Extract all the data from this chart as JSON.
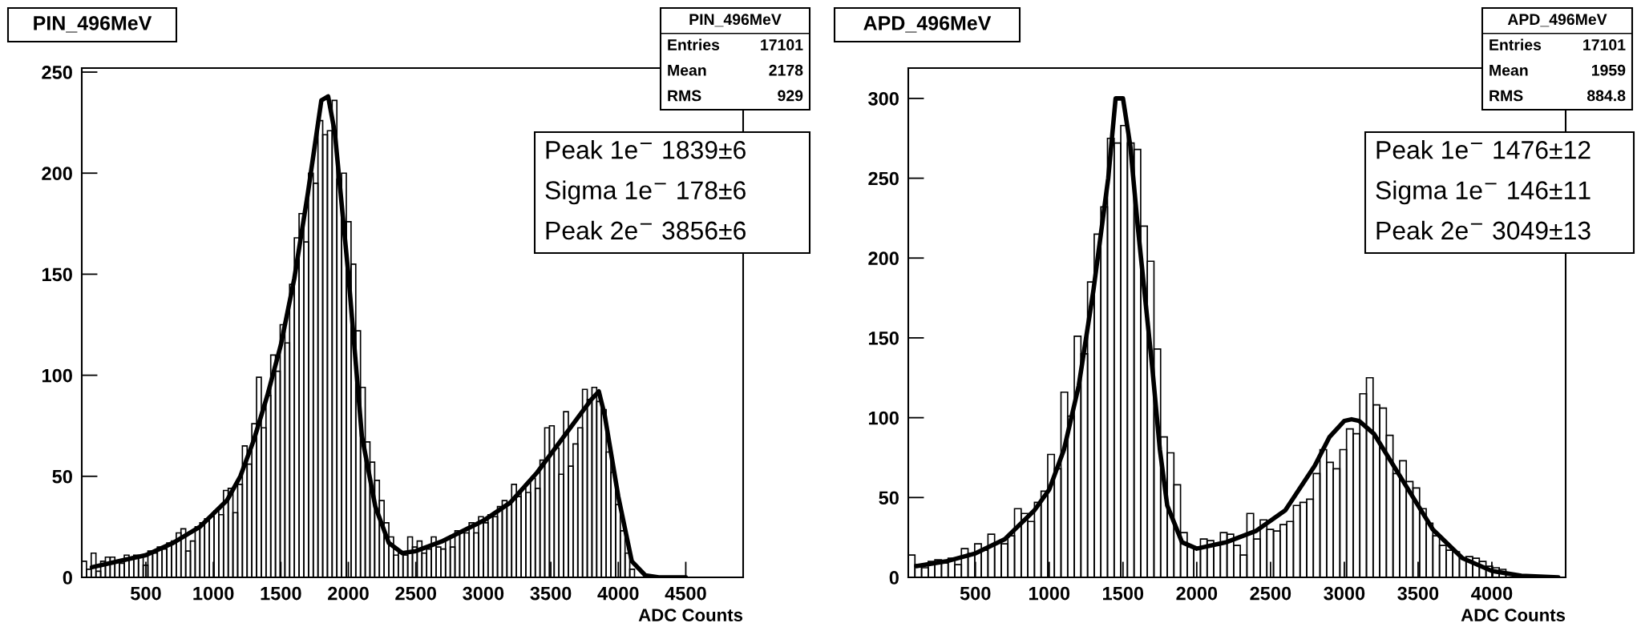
{
  "chart_data": [
    {
      "type": "histogram",
      "title": "PIN_496MeV",
      "xlabel": "ADC Counts",
      "color": "#000000",
      "xlim": [
        25,
        4925
      ],
      "xticks": [
        500,
        1000,
        1500,
        2000,
        2500,
        3000,
        3500,
        4000,
        4500
      ],
      "ylim": [
        0,
        252
      ],
      "yticks": [
        0,
        50,
        100,
        150,
        200,
        250
      ],
      "grid": false,
      "legend": false,
      "bins": [
        25,
        60,
        95,
        130,
        165,
        200,
        235,
        270,
        305,
        340,
        375,
        410,
        445,
        480,
        515,
        550,
        585,
        620,
        655,
        690,
        725,
        760,
        795,
        830,
        865,
        900,
        935,
        970,
        1005,
        1040,
        1075,
        1110,
        1145,
        1180,
        1215,
        1250,
        1285,
        1320,
        1355,
        1390,
        1425,
        1460,
        1495,
        1530,
        1565,
        1600,
        1635,
        1670,
        1705,
        1740,
        1775,
        1810,
        1845,
        1880,
        1915,
        1950,
        1985,
        2020,
        2055,
        2090,
        2125,
        2160,
        2195,
        2230,
        2265,
        2300,
        2335,
        2370,
        2405,
        2440,
        2475,
        2510,
        2545,
        2580,
        2615,
        2650,
        2685,
        2720,
        2755,
        2790,
        2825,
        2860,
        2895,
        2930,
        2965,
        3000,
        3035,
        3070,
        3105,
        3140,
        3175,
        3210,
        3245,
        3280,
        3315,
        3350,
        3385,
        3420,
        3455,
        3490,
        3525,
        3560,
        3595,
        3630,
        3665,
        3700,
        3735,
        3770,
        3805,
        3840,
        3875,
        3910,
        3945,
        3980,
        4015,
        4050,
        4085,
        4120,
        4155,
        4190,
        4225
      ],
      "values": [
        8,
        4,
        12,
        3,
        8,
        10,
        10,
        8,
        7,
        11,
        9,
        11,
        10,
        6,
        13,
        12,
        15,
        14,
        17,
        18,
        22,
        24,
        13,
        18,
        25,
        27,
        29,
        30,
        33,
        31,
        43,
        44,
        32,
        46,
        65,
        56,
        76,
        99,
        74,
        90,
        110,
        102,
        125,
        116,
        145,
        168,
        180,
        166,
        200,
        195,
        226,
        219,
        221,
        236,
        197,
        200,
        176,
        155,
        122,
        94,
        67,
        57,
        48,
        38,
        27,
        20,
        11,
        12,
        11,
        20,
        15,
        18,
        12,
        14,
        20,
        15,
        14,
        19,
        15,
        23,
        22,
        22,
        27,
        22,
        30,
        27,
        31,
        30,
        35,
        38,
        36,
        46,
        40,
        44,
        42,
        49,
        44,
        58,
        74,
        75,
        64,
        51,
        82,
        55,
        66,
        74,
        93,
        88,
        94,
        87,
        83,
        62,
        52,
        36,
        23,
        12,
        4,
        null,
        0,
        0
      ],
      "series": [
        {
          "type": "line",
          "color": "#000000",
          "x": [
            100,
            300,
            500,
            700,
            900,
            1100,
            1200,
            1300,
            1400,
            1500,
            1600,
            1700,
            1800,
            1850,
            1900,
            2000,
            2050,
            2100,
            2200,
            2300,
            2400,
            2500,
            2700,
            3000,
            3200,
            3400,
            3600,
            3800,
            3856,
            3900,
            4000,
            4100,
            4200,
            4300,
            4500
          ],
          "values": [
            5,
            8,
            11,
            17,
            25,
            38,
            50,
            68,
            90,
            115,
            148,
            190,
            236,
            238,
            220,
            150,
            110,
            70,
            35,
            17,
            12,
            13,
            18,
            28,
            37,
            52,
            70,
            88,
            92,
            80,
            40,
            8,
            1,
            0,
            0
          ]
        }
      ],
      "annotations": [
        "PIN_496MeV",
        "Entries 17101",
        "Mean 2178",
        "RMS 929",
        "Peak 1e$^{−}$ 1839±6",
        "Sigma 1e$^{−}$ 178±6",
        "Peak 2e$^{−}$ 3856±6"
      ]
    },
    {
      "type": "histogram",
      "title": "APD_496MeV",
      "xlabel": "ADC Counts",
      "color": "#000000",
      "xlim": [
        45,
        4500
      ],
      "xticks": [
        500,
        1000,
        1500,
        2000,
        2500,
        3000,
        3500,
        4000
      ],
      "ylim": [
        0,
        319
      ],
      "yticks": [
        0,
        50,
        100,
        150,
        200,
        250,
        300
      ],
      "grid": false,
      "legend": false,
      "bins": [
        45,
        90,
        135,
        180,
        225,
        270,
        315,
        360,
        405,
        450,
        495,
        540,
        585,
        630,
        675,
        720,
        765,
        810,
        855,
        900,
        945,
        990,
        1035,
        1080,
        1125,
        1170,
        1215,
        1260,
        1305,
        1350,
        1395,
        1440,
        1485,
        1530,
        1575,
        1620,
        1665,
        1710,
        1755,
        1800,
        1845,
        1890,
        1935,
        1980,
        2025,
        2070,
        2115,
        2160,
        2205,
        2250,
        2295,
        2340,
        2385,
        2430,
        2475,
        2520,
        2565,
        2610,
        2655,
        2700,
        2745,
        2790,
        2835,
        2880,
        2925,
        2970,
        3015,
        3060,
        3105,
        3150,
        3195,
        3240,
        3285,
        3330,
        3375,
        3420,
        3465,
        3510,
        3555,
        3600,
        3645,
        3690,
        3735,
        3780,
        3825,
        3870,
        3915,
        3960,
        4005,
        4050,
        4095,
        4140,
        4185,
        4230,
        4275,
        4320,
        4365,
        4410,
        4455,
        4500
      ],
      "values": [
        14,
        8,
        6,
        10,
        11,
        9,
        12,
        8,
        18,
        15,
        21,
        17,
        27,
        22,
        21,
        26,
        43,
        40,
        35,
        47,
        54,
        77,
        68,
        116,
        101,
        151,
        140,
        185,
        215,
        232,
        275,
        272,
        283,
        272,
        268,
        220,
        198,
        143,
        88,
        78,
        58,
        28,
        19,
        18,
        24,
        23,
        20,
        28,
        27,
        20,
        14,
        40,
        24,
        36,
        30,
        29,
        33,
        35,
        45,
        47,
        49,
        65,
        80,
        72,
        68,
        80,
        93,
        90,
        115,
        125,
        108,
        106,
        89,
        65,
        73,
        60,
        56,
        43,
        34,
        26,
        20,
        17,
        16,
        12,
        13,
        12,
        10,
        7,
        6,
        5,
        2,
        0,
        0,
        0,
        0,
        0,
        0,
        0,
        0
      ],
      "series": [
        {
          "type": "line",
          "color": "#000000",
          "x": [
            100,
            300,
            500,
            700,
            900,
            1000,
            1100,
            1200,
            1300,
            1400,
            1450,
            1500,
            1550,
            1600,
            1700,
            1750,
            1800,
            1900,
            2000,
            2200,
            2400,
            2600,
            2800,
            2900,
            3000,
            3049,
            3100,
            3200,
            3400,
            3600,
            3800,
            4000,
            4200,
            4450
          ],
          "values": [
            7,
            10,
            15,
            24,
            42,
            55,
            80,
            120,
            180,
            250,
            300,
            300,
            270,
            220,
            130,
            80,
            45,
            22,
            18,
            22,
            29,
            42,
            70,
            88,
            98,
            99,
            98,
            90,
            60,
            30,
            12,
            4,
            1,
            0
          ]
        }
      ],
      "annotations": [
        "APD_496MeV",
        "Entries 17101",
        "Mean 1959",
        "RMS 884.8",
        "Peak 1e$^{−}$ 1476±12",
        "Sigma 1e$^{−}$ 146±11",
        "Peak 2e$^{−}$ 3049±13"
      ]
    }
  ]
}
